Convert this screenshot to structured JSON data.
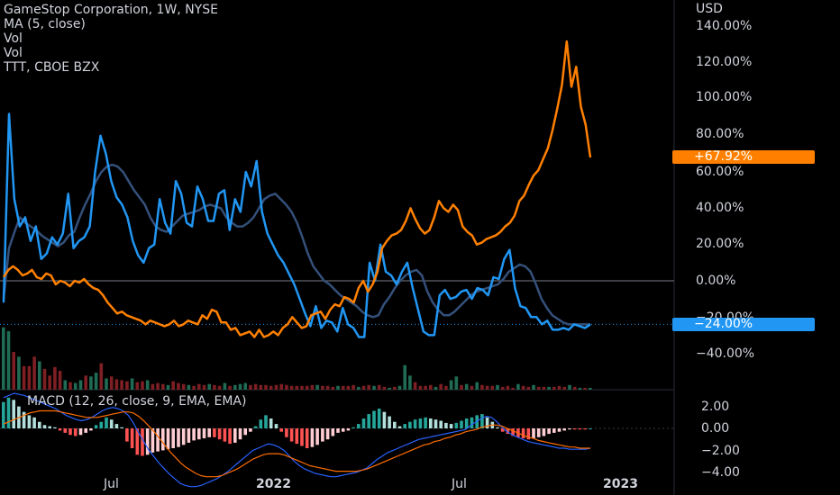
{
  "legend": {
    "title": "GameStop Corporation, 1W, NYSE",
    "lines": [
      "MA (5, close)",
      "Vol",
      "Vol",
      "TTT, CBOE BZX"
    ]
  },
  "currency": "USD",
  "macd_label": "MACD (12, 26, close, 9, EMA, EMA)",
  "colors": {
    "background": "#000000",
    "gme_line": "#ff8000",
    "ttt_line": "#2196f3",
    "ma_line": "#34507a",
    "vol_up": "#1f6b54",
    "vol_down": "#7d1f23",
    "macd_line": "#2962ff",
    "signal_line": "#ff6d00",
    "hist_pos_strong": "#26a69a",
    "hist_pos_weak": "#b2dfdb",
    "hist_neg_strong": "#ff5252",
    "hist_neg_weak": "#ffcdd2"
  },
  "last_values": {
    "gme": "+67.92%",
    "ttt": "−24.00%"
  },
  "chart_data": [
    {
      "type": "line",
      "title": "GameStop Corporation, 1W, NYSE",
      "ylabel": "USD",
      "y_tick_labels": [
        "140.00%",
        "120.00%",
        "100.00%",
        "80.00%",
        "60.00%",
        "40.00%",
        "20.00%",
        "0.00%",
        "−20.00%",
        "−40.00%"
      ],
      "ylim": [
        -48,
        145
      ],
      "x_tick_labels": [
        "Jul",
        "2022",
        "Jul",
        "2023"
      ],
      "series": [
        {
          "name": "GameStop Corporation",
          "values": [
            2,
            6,
            8,
            6,
            3,
            4,
            6,
            2,
            1,
            4,
            3,
            -2,
            0,
            -1,
            -3,
            0,
            -1,
            1,
            -2,
            -4,
            -5,
            -8,
            -12,
            -15,
            -18,
            -17,
            -19,
            -20,
            -21,
            -22,
            -24,
            -22,
            -23,
            -24,
            -25,
            -24,
            -22,
            -25,
            -24,
            -22,
            -23,
            -24,
            -19,
            -21,
            -16,
            -17,
            -23,
            -23,
            -27,
            -26,
            -30,
            -29,
            -28,
            -31,
            -27,
            -31,
            -30,
            -28,
            -30,
            -26,
            -24,
            -20,
            -23,
            -26,
            -25,
            -19,
            -18,
            -17,
            -21,
            -16,
            -13,
            -14,
            -9,
            -10,
            -12,
            -4,
            0,
            -6,
            -2,
            5,
            18,
            22,
            25,
            26,
            28,
            33,
            40,
            34,
            29,
            26,
            28,
            35,
            44,
            40,
            38,
            42,
            39,
            30,
            27,
            25,
            20,
            21,
            23,
            24,
            25,
            27,
            30,
            32,
            36,
            44,
            47,
            53,
            58,
            61,
            67,
            73,
            83,
            95,
            108,
            132,
            107,
            118,
            96,
            86,
            68
          ]
        },
        {
          "name": "TTT, CBOE BZX",
          "values": [
            -12,
            92,
            45,
            30,
            35,
            22,
            30,
            12,
            15,
            24,
            20,
            26,
            48,
            18,
            22,
            24,
            30,
            60,
            80,
            70,
            55,
            46,
            42,
            35,
            22,
            14,
            10,
            18,
            20,
            45,
            32,
            26,
            55,
            48,
            32,
            30,
            52,
            45,
            33,
            33,
            48,
            50,
            28,
            45,
            38,
            60,
            52,
            66,
            38,
            26,
            20,
            14,
            10,
            4,
            -2,
            -10,
            -18,
            -25,
            -14,
            -26,
            -22,
            -23,
            -28,
            -15,
            -24,
            -26,
            -31,
            -31,
            10,
            0,
            20,
            5,
            3,
            -2,
            5,
            10,
            -4,
            -16,
            -28,
            -30,
            -30,
            -8,
            -5,
            -10,
            -9,
            -6,
            -5,
            -10,
            -4,
            -5,
            -8,
            2,
            1,
            12,
            17,
            -4,
            -14,
            -15,
            -20,
            -20,
            -24,
            -22,
            -27,
            -27,
            -26,
            -27,
            -24,
            -25,
            -26,
            -24
          ]
        },
        {
          "name": "MA (5, close)",
          "values": [
            -10,
            18,
            27,
            35,
            32,
            30,
            28,
            25,
            23,
            21,
            19,
            21,
            25,
            27,
            35,
            42,
            48,
            55,
            60,
            63,
            64,
            63,
            60,
            55,
            50,
            46,
            42,
            35,
            30,
            28,
            27,
            30,
            33,
            36,
            37,
            38,
            39,
            41,
            42,
            41,
            40,
            35,
            32,
            30,
            30,
            32,
            35,
            40,
            45,
            47,
            48,
            45,
            42,
            38,
            32,
            24,
            15,
            8,
            4,
            0,
            -2,
            -5,
            -8,
            -10,
            -12,
            -14,
            -17,
            -19,
            -20,
            -19,
            -13,
            -9,
            -4,
            0,
            3,
            5,
            6,
            3,
            -6,
            -12,
            -16,
            -19,
            -19,
            -17,
            -14,
            -11,
            -8,
            -6,
            -5,
            -4,
            -3,
            -2,
            1,
            5,
            7,
            9,
            8,
            5,
            -2,
            -10,
            -15,
            -19,
            -21,
            -23,
            -24,
            -24,
            -24,
            -24,
            -24
          ]
        }
      ]
    },
    {
      "type": "bar",
      "title": "Vol",
      "values": [
        66,
        62,
        40,
        35,
        25,
        25,
        35,
        30,
        22,
        15,
        24,
        20,
        10,
        8,
        7,
        10,
        15,
        14,
        18,
        28,
        12,
        14,
        11,
        10,
        9,
        12,
        8,
        9,
        10,
        6,
        7,
        6,
        5,
        9,
        7,
        6,
        5,
        4,
        6,
        5,
        6,
        5,
        4,
        7,
        4,
        5,
        6,
        7,
        5,
        6,
        5,
        5,
        4,
        5,
        6,
        5,
        4,
        4,
        4,
        4,
        5,
        5,
        4,
        4,
        3,
        4,
        4,
        4,
        5,
        3,
        4,
        5,
        4,
        5,
        3,
        2,
        3,
        4,
        26,
        15,
        8,
        4,
        4,
        5,
        3,
        6,
        4,
        10,
        14,
        5,
        6,
        4,
        8,
        5,
        4,
        4,
        5,
        3,
        4,
        2,
        6,
        4,
        3,
        5,
        3,
        3,
        3,
        3,
        4,
        3,
        5,
        3,
        2,
        2,
        2
      ],
      "up": [
        true,
        true,
        false,
        true,
        false,
        false,
        false,
        true,
        false,
        false,
        false,
        false,
        true,
        false,
        true,
        true,
        false,
        true,
        true,
        false,
        true,
        false,
        false,
        false,
        false,
        true,
        false,
        false,
        true,
        false,
        false,
        false,
        true,
        false,
        false,
        false,
        true,
        false,
        false,
        false,
        true,
        false,
        false,
        true,
        false,
        true,
        true,
        true,
        false,
        false,
        false,
        false,
        false,
        false,
        false,
        false,
        false,
        false,
        false,
        false,
        false,
        true,
        false,
        false,
        false,
        true,
        false,
        false,
        false,
        true,
        false,
        false,
        true,
        false,
        false,
        true,
        false,
        true,
        true,
        true,
        false,
        false,
        false,
        false,
        true,
        false,
        false,
        true,
        true,
        false,
        true,
        false,
        true,
        false,
        false,
        false,
        true,
        false,
        false,
        false,
        true,
        false,
        false,
        true,
        false,
        false,
        true,
        false,
        false,
        false,
        true,
        false,
        true,
        false,
        true
      ]
    },
    {
      "type": "bar",
      "title": "MACD (12, 26, close, 9, EMA, EMA)",
      "y_tick_labels": [
        "2.00",
        "0.00",
        "−2.00",
        "−4.00"
      ],
      "ylim": [
        -4.2,
        3.4
      ],
      "histogram": [
        2.4,
        2.8,
        2.6,
        2.0,
        1.5,
        1.2,
        1.0,
        0.6,
        0.3,
        0.2,
        0.1,
        -0.2,
        -0.4,
        -0.6,
        -0.7,
        -0.6,
        -0.4,
        -0.2,
        0.3,
        0.6,
        1.0,
        0.8,
        0.4,
        0.1,
        -1.2,
        -1.8,
        -2.4,
        -2.5,
        -2.4,
        -2.2,
        -2.1,
        -2.0,
        -1.9,
        -1.8,
        -1.7,
        -1.5,
        -1.3,
        -1.1,
        -1.0,
        -0.9,
        -0.8,
        -0.8,
        -1.0,
        -1.2,
        -1.4,
        -1.3,
        -1.0,
        -0.6,
        -0.3,
        0.2,
        0.8,
        1.2,
        0.9,
        0.4,
        -0.3,
        -0.8,
        -1.2,
        -1.4,
        -1.6,
        -1.8,
        -1.7,
        -1.5,
        -1.2,
        -1.0,
        -0.7,
        -0.4,
        -0.3,
        -0.2,
        0.1,
        0.4,
        0.9,
        1.3,
        1.6,
        1.8,
        1.5,
        1.1,
        0.6,
        0.2,
        0.4,
        0.6,
        0.8,
        0.9,
        1.0,
        0.9,
        0.8,
        0.7,
        0.5,
        0.4,
        0.5,
        0.7,
        0.9,
        1.0,
        1.2,
        1.3,
        1.0,
        0.6,
        0.1,
        -0.3,
        -0.5,
        -0.7,
        -0.8,
        -0.9,
        -1.0,
        -0.9,
        -0.8,
        -0.7,
        -0.5,
        -0.4,
        -0.3,
        -0.2,
        -0.1,
        -0.1,
        -0.1,
        -0.1,
        0.0
      ],
      "macd": [
        2.8,
        3.0,
        3.2,
        3.1,
        3.0,
        2.8,
        2.6,
        2.4,
        2.2,
        2.0,
        1.8,
        1.5,
        1.2,
        1.0,
        0.8,
        0.7,
        0.8,
        1.0,
        1.3,
        1.6,
        1.8,
        1.9,
        1.8,
        1.6,
        1.2,
        0.5,
        -0.4,
        -1.2,
        -2.0,
        -2.6,
        -3.2,
        -3.7,
        -4.2,
        -4.6,
        -5.0,
        -5.2,
        -5.3,
        -5.3,
        -5.2,
        -5.0,
        -4.8,
        -4.6,
        -4.3,
        -4.0,
        -3.6,
        -3.2,
        -2.8,
        -2.4,
        -2.0,
        -1.8,
        -1.6,
        -1.4,
        -1.5,
        -1.7,
        -2.0,
        -2.5,
        -3.0,
        -3.4,
        -3.7,
        -3.9,
        -4.1,
        -4.2,
        -4.3,
        -4.4,
        -4.4,
        -4.3,
        -4.2,
        -4.1,
        -4.0,
        -3.8,
        -3.6,
        -3.2,
        -2.8,
        -2.5,
        -2.2,
        -2.0,
        -1.8,
        -1.6,
        -1.4,
        -1.2,
        -1.0,
        -0.9,
        -0.8,
        -0.7,
        -0.6,
        -0.5,
        -0.4,
        -0.3,
        -0.2,
        -0.1,
        0.3,
        0.6,
        0.9,
        1.1,
        1.0,
        0.6,
        0.1,
        -0.3,
        -0.6,
        -0.8,
        -1.0,
        -1.2,
        -1.3,
        -1.4,
        -1.5,
        -1.6,
        -1.7,
        -1.8,
        -1.8,
        -1.9,
        -1.9,
        -1.9,
        -1.9,
        -1.8
      ],
      "signal": [
        0.4,
        0.6,
        0.8,
        1.0,
        1.2,
        1.4,
        1.5,
        1.6,
        1.6,
        1.6,
        1.6,
        1.5,
        1.4,
        1.3,
        1.2,
        1.1,
        1.0,
        1.0,
        1.0,
        1.1,
        1.2,
        1.3,
        1.4,
        1.5,
        1.5,
        1.4,
        1.1,
        0.7,
        0.2,
        -0.3,
        -0.9,
        -1.5,
        -2.1,
        -2.6,
        -3.1,
        -3.5,
        -3.8,
        -4.1,
        -4.3,
        -4.4,
        -4.4,
        -4.4,
        -4.3,
        -4.1,
        -3.9,
        -3.7,
        -3.4,
        -3.1,
        -2.8,
        -2.6,
        -2.4,
        -2.3,
        -2.3,
        -2.3,
        -2.4,
        -2.6,
        -2.8,
        -3.0,
        -3.2,
        -3.4,
        -3.5,
        -3.6,
        -3.7,
        -3.8,
        -3.9,
        -3.9,
        -3.9,
        -3.9,
        -3.9,
        -3.8,
        -3.7,
        -3.5,
        -3.3,
        -3.1,
        -2.9,
        -2.7,
        -2.5,
        -2.3,
        -2.1,
        -1.9,
        -1.7,
        -1.5,
        -1.4,
        -1.2,
        -1.1,
        -0.9,
        -0.8,
        -0.6,
        -0.5,
        -0.3,
        -0.2,
        -0.1,
        0.1,
        0.2,
        0.3,
        0.3,
        0.2,
        0.0,
        -0.2,
        -0.4,
        -0.6,
        -0.8,
        -0.9,
        -1.1,
        -1.2,
        -1.3,
        -1.4,
        -1.5,
        -1.6,
        -1.7,
        -1.7,
        -1.8,
        -1.8,
        -1.8
      ]
    }
  ]
}
